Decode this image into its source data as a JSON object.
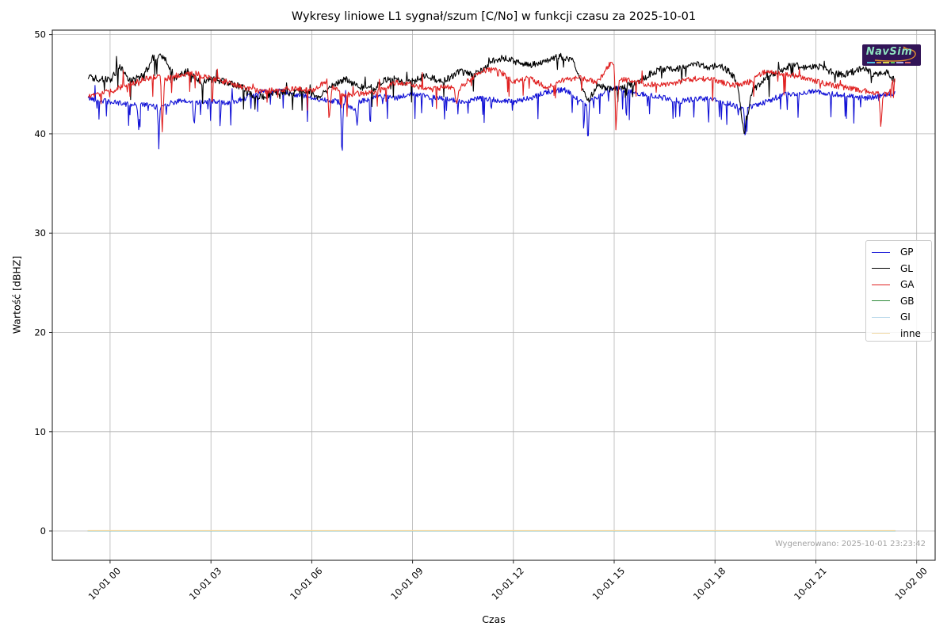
{
  "title": "Wykresy liniowe L1 sygnał/szum [C/No] w funkcji czasu za 2025-10-01",
  "footer": "Wygenerowano: 2025-10-01 23:23:42",
  "logo": {
    "text": "NavSim"
  },
  "colors": {
    "grid": "#b4b4b4",
    "spine": "#262626",
    "footer_text": "#a3a3a3",
    "logo_bg": "#321457",
    "logo_text": "#8fe0c0",
    "logo_swoosh": "#e8952e"
  },
  "chart_data": {
    "type": "line",
    "title": "Wykresy liniowe L1 sygnał/szum [C/No] w funkcji czasu za 2025-10-01",
    "xlabel": "Czas",
    "ylabel": "Wartość [dBHZ]",
    "grid": true,
    "legend_position": "right",
    "legend_entries": [
      "GP",
      "GL",
      "GA",
      "GB",
      "GI",
      "inne"
    ],
    "y_ticks": [
      0,
      10,
      20,
      30,
      40,
      50
    ],
    "x_ticks": [
      {
        "hour": 0,
        "label": "10-01 00"
      },
      {
        "hour": 3,
        "label": "10-01 03"
      },
      {
        "hour": 6,
        "label": "10-01 06"
      },
      {
        "hour": 9,
        "label": "10-01 09"
      },
      {
        "hour": 12,
        "label": "10-01 12"
      },
      {
        "hour": 15,
        "label": "10-01 15"
      },
      {
        "hour": 18,
        "label": "10-01 18"
      },
      {
        "hour": 21,
        "label": "10-01 21"
      },
      {
        "hour": 24,
        "label": "10-02 00"
      }
    ],
    "ylim": [
      -2.95,
      50.45
    ],
    "xlim_hours": [
      -1.72,
      24.55
    ],
    "time_range_hours": [
      -0.65,
      23.35
    ],
    "sample_step_hours": 0.02,
    "seed": 42,
    "series": [
      {
        "name": "GP",
        "color": "#1212d6",
        "noise": 0.27,
        "spike_prob": 0.06,
        "spike_min": 0.5,
        "spike_max": 2.6,
        "spike_up_frac": 0.08,
        "keypoints": [
          [
            -0.65,
            43.6
          ],
          [
            0,
            43.2
          ],
          [
            0.8,
            42.9
          ],
          [
            0.85,
            40.6
          ],
          [
            0.9,
            43.0
          ],
          [
            1.4,
            42.7
          ],
          [
            1.45,
            39.8
          ],
          [
            1.5,
            42.8
          ],
          [
            2,
            43.3
          ],
          [
            2.45,
            43.2
          ],
          [
            2.5,
            40.6
          ],
          [
            2.55,
            43.2
          ],
          [
            3,
            43.3
          ],
          [
            3.5,
            43.1
          ],
          [
            4,
            43.6
          ],
          [
            4.5,
            44.2
          ],
          [
            5,
            44.3
          ],
          [
            5.5,
            44.0
          ],
          [
            6,
            43.6
          ],
          [
            6.5,
            43.4
          ],
          [
            6.86,
            43.2
          ],
          [
            6.9,
            37.1
          ],
          [
            6.94,
            43.1
          ],
          [
            7.3,
            42.5
          ],
          [
            7.35,
            40.9
          ],
          [
            7.4,
            43.2
          ],
          [
            8,
            43.8
          ],
          [
            8.5,
            43.6
          ],
          [
            9,
            44.0
          ],
          [
            9.5,
            43.7
          ],
          [
            10,
            43.5
          ],
          [
            10.5,
            43.2
          ],
          [
            11,
            43.6
          ],
          [
            11.5,
            43.4
          ],
          [
            12,
            43.2
          ],
          [
            12.5,
            43.6
          ],
          [
            13,
            44.2
          ],
          [
            13.5,
            44.5
          ],
          [
            13.9,
            43.6
          ],
          [
            14.18,
            43.0
          ],
          [
            14.22,
            38.6
          ],
          [
            14.26,
            43.2
          ],
          [
            14.8,
            44.4
          ],
          [
            15.1,
            44.6
          ],
          [
            15.5,
            44.2
          ],
          [
            16,
            43.9
          ],
          [
            16.5,
            43.6
          ],
          [
            17,
            43.3
          ],
          [
            17.5,
            43.6
          ],
          [
            18,
            43.4
          ],
          [
            18.5,
            43.0
          ],
          [
            18.86,
            42.4
          ],
          [
            18.9,
            39.3
          ],
          [
            18.94,
            42.6
          ],
          [
            19.5,
            43.2
          ],
          [
            20,
            43.9
          ],
          [
            20.5,
            44.1
          ],
          [
            21,
            44.3
          ],
          [
            21.5,
            44.0
          ],
          [
            22,
            43.8
          ],
          [
            22.5,
            43.6
          ],
          [
            23,
            43.9
          ],
          [
            23.35,
            44.1
          ]
        ]
      },
      {
        "name": "GL",
        "color": "#000000",
        "noise": 0.33,
        "spike_prob": 0.055,
        "spike_min": 0.4,
        "spike_max": 2.0,
        "spike_up_frac": 0.3,
        "keypoints": [
          [
            -0.65,
            45.7
          ],
          [
            0,
            45.4
          ],
          [
            0.3,
            46.8
          ],
          [
            0.6,
            45.3
          ],
          [
            1,
            45.9
          ],
          [
            1.3,
            47.7
          ],
          [
            1.6,
            47.9
          ],
          [
            1.9,
            45.6
          ],
          [
            2.3,
            46.3
          ],
          [
            2.7,
            45.2
          ],
          [
            3,
            45.5
          ],
          [
            3.5,
            45.2
          ],
          [
            4,
            44.6
          ],
          [
            4.3,
            43.6
          ],
          [
            4.7,
            43.9
          ],
          [
            5,
            44.3
          ],
          [
            5.4,
            44.1
          ],
          [
            5.8,
            44.4
          ],
          [
            6.2,
            43.7
          ],
          [
            6.6,
            44.8
          ],
          [
            7,
            45.5
          ],
          [
            7.4,
            44.8
          ],
          [
            7.8,
            44.4
          ],
          [
            8.1,
            45.3
          ],
          [
            8.4,
            45.6
          ],
          [
            8.8,
            45.1
          ],
          [
            9.1,
            45.4
          ],
          [
            9.4,
            45.9
          ],
          [
            9.8,
            45.3
          ],
          [
            10.1,
            45.6
          ],
          [
            10.4,
            46.3
          ],
          [
            10.8,
            45.9
          ],
          [
            11.1,
            46.5
          ],
          [
            11.4,
            47.4
          ],
          [
            11.8,
            47.7
          ],
          [
            12.1,
            47.2
          ],
          [
            12.4,
            46.9
          ],
          [
            12.8,
            47.1
          ],
          [
            13.1,
            47.6
          ],
          [
            13.4,
            47.8
          ],
          [
            13.8,
            47.3
          ],
          [
            14,
            45.2
          ],
          [
            14.2,
            43.2
          ],
          [
            14.5,
            44.9
          ],
          [
            15,
            44.4
          ],
          [
            15.4,
            44.9
          ],
          [
            15.8,
            45.4
          ],
          [
            16.1,
            46.1
          ],
          [
            16.4,
            46.6
          ],
          [
            16.8,
            46.4
          ],
          [
            17.1,
            46.9
          ],
          [
            17.4,
            47.2
          ],
          [
            17.8,
            46.6
          ],
          [
            18.1,
            47.0
          ],
          [
            18.4,
            46.3
          ],
          [
            18.65,
            45.3
          ],
          [
            18.87,
            39.9
          ],
          [
            19.1,
            44.3
          ],
          [
            19.5,
            45.6
          ],
          [
            20,
            46.4
          ],
          [
            20.3,
            47.0
          ],
          [
            20.7,
            46.6
          ],
          [
            21,
            46.9
          ],
          [
            21.4,
            46.3
          ],
          [
            21.8,
            45.9
          ],
          [
            22.1,
            46.3
          ],
          [
            22.4,
            46.6
          ],
          [
            22.8,
            45.9
          ],
          [
            23.1,
            46.2
          ],
          [
            23.35,
            45.4
          ]
        ]
      },
      {
        "name": "GA",
        "color": "#e02020",
        "noise": 0.28,
        "spike_prob": 0.05,
        "spike_min": 0.4,
        "spike_max": 2.2,
        "spike_up_frac": 0.15,
        "keypoints": [
          [
            -0.65,
            43.8
          ],
          [
            0,
            44.3
          ],
          [
            0.5,
            44.9
          ],
          [
            1,
            45.5
          ],
          [
            1.5,
            45.9
          ],
          [
            1.55,
            40.3
          ],
          [
            1.62,
            45.5
          ],
          [
            2,
            45.9
          ],
          [
            2.5,
            46.1
          ],
          [
            3,
            45.6
          ],
          [
            3.5,
            45.2
          ],
          [
            4,
            44.6
          ],
          [
            4.5,
            44.3
          ],
          [
            5,
            44.4
          ],
          [
            5.5,
            44.6
          ],
          [
            6,
            44.3
          ],
          [
            6.45,
            45.3
          ],
          [
            6.52,
            41.2
          ],
          [
            6.6,
            44.8
          ],
          [
            7,
            43.9
          ],
          [
            7.5,
            44.1
          ],
          [
            8,
            44.3
          ],
          [
            8.5,
            45.2
          ],
          [
            9,
            45.0
          ],
          [
            9.5,
            44.4
          ],
          [
            10,
            44.8
          ],
          [
            10.25,
            44.6
          ],
          [
            10.3,
            42.8
          ],
          [
            10.4,
            44.6
          ],
          [
            11,
            46.3
          ],
          [
            11.5,
            46.5
          ],
          [
            12,
            45.3
          ],
          [
            12.5,
            45.6
          ],
          [
            13,
            44.6
          ],
          [
            13.5,
            45.4
          ],
          [
            14,
            45.6
          ],
          [
            14.5,
            45.2
          ],
          [
            14.9,
            47.2
          ],
          [
            15,
            46.8
          ],
          [
            15.05,
            40.6
          ],
          [
            15.15,
            45.6
          ],
          [
            15.5,
            45.3
          ],
          [
            16,
            45.0
          ],
          [
            16.5,
            44.9
          ],
          [
            17,
            45.3
          ],
          [
            17.5,
            45.6
          ],
          [
            18,
            45.4
          ],
          [
            18.5,
            44.9
          ],
          [
            19,
            45.2
          ],
          [
            19.5,
            46.3
          ],
          [
            20,
            46.1
          ],
          [
            20.5,
            45.8
          ],
          [
            21,
            45.3
          ],
          [
            21.5,
            44.9
          ],
          [
            22,
            44.6
          ],
          [
            22.5,
            44.3
          ],
          [
            22.88,
            44.0
          ],
          [
            22.93,
            40.7
          ],
          [
            23,
            43.9
          ],
          [
            23.2,
            44.2
          ],
          [
            23.35,
            45.8
          ]
        ]
      },
      {
        "name": "GB",
        "color": "#2e8b3a",
        "noise": 0,
        "spike_prob": 0,
        "spike_min": 0,
        "spike_max": 0,
        "spike_up_frac": 0,
        "keypoints": [
          [
            -0.65,
            0
          ],
          [
            23.35,
            0
          ]
        ]
      },
      {
        "name": "GI",
        "color": "#b8d8ea",
        "noise": 0,
        "spike_prob": 0,
        "spike_min": 0,
        "spike_max": 0,
        "spike_up_frac": 0,
        "keypoints": [
          [
            -0.65,
            0
          ],
          [
            23.35,
            0
          ]
        ]
      },
      {
        "name": "inne",
        "color": "#f0d9a4",
        "noise": 0,
        "spike_prob": 0,
        "spike_min": 0,
        "spike_max": 0,
        "spike_up_frac": 0,
        "keypoints": [
          [
            -0.65,
            0.05
          ],
          [
            23.35,
            0.05
          ]
        ]
      }
    ]
  }
}
